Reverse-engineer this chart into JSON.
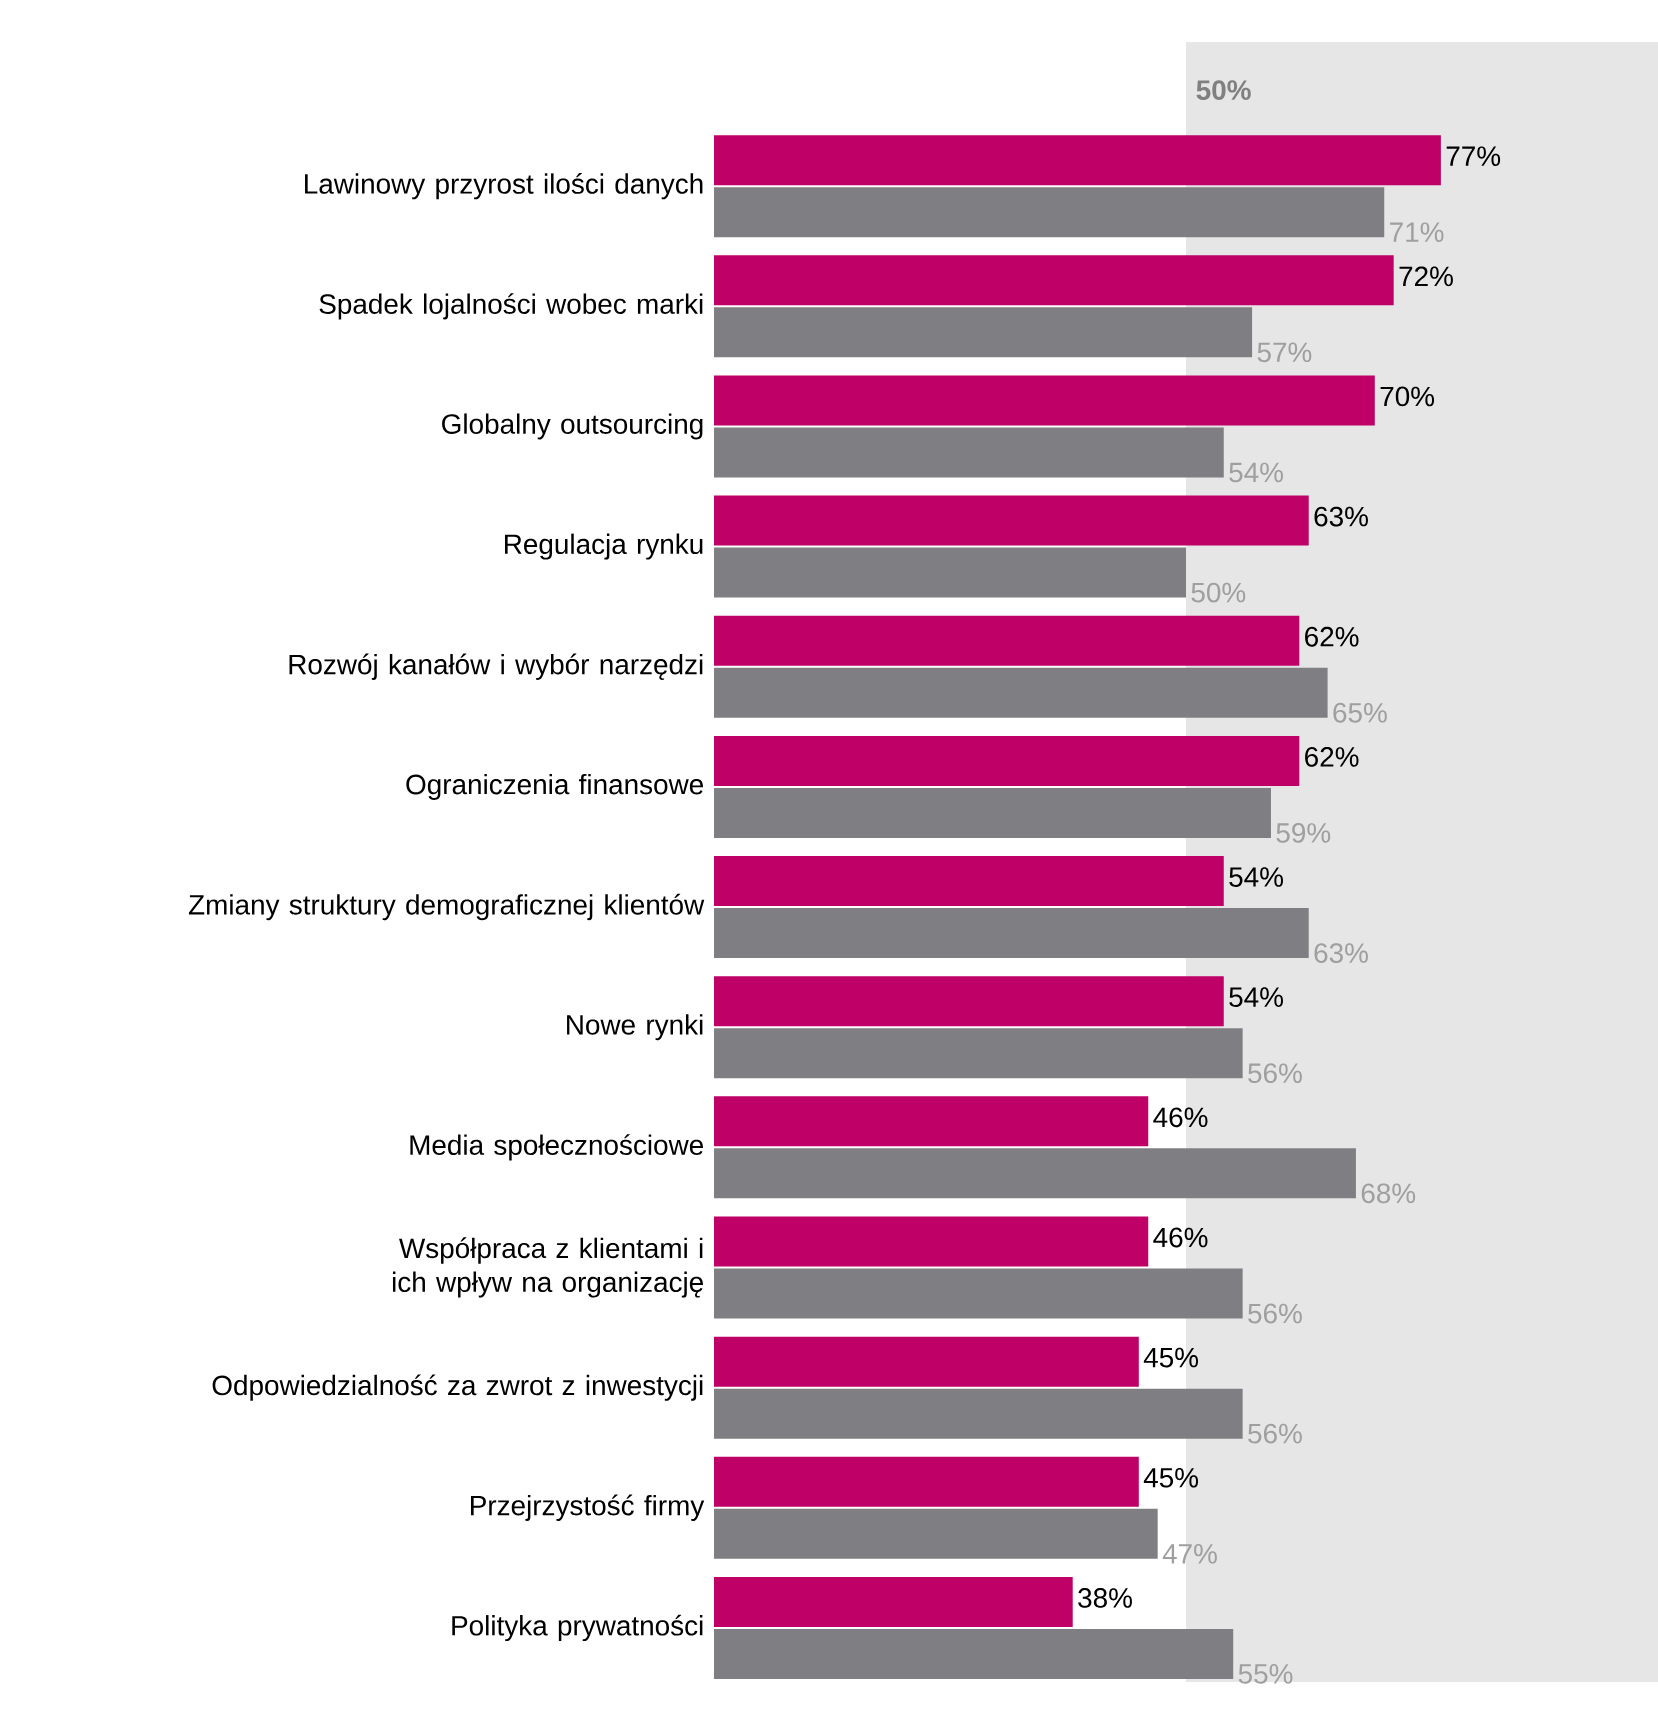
{
  "chart_data": {
    "type": "bar",
    "orientation": "horizontal",
    "categories": [
      "Lawinowy przyrost ilości danych",
      "Spadek lojalności wobec marki",
      "Globalny outsourcing",
      "Regulacja rynku",
      "Rozwój kanałów i wybór narzędzi",
      "Ograniczenia finansowe",
      "Zmiany struktury demograficznej klientów",
      "Nowe rynki",
      "Media społecznościowe",
      "Współpraca z klientami i ich wpływ na organizację",
      "Odpowiedzialność za zwrot z inwestycji",
      "Przejrzystość firmy",
      "Polityka prywatności"
    ],
    "series": [
      {
        "color": "#be0067",
        "values": [
          77,
          72,
          70,
          63,
          62,
          62,
          54,
          54,
          46,
          46,
          45,
          45,
          38
        ],
        "value_labels": [
          "77%",
          "72%",
          "70%",
          "63%",
          "62%",
          "62%",
          "54%",
          "54%",
          "46%",
          "46%",
          "45%",
          "45%",
          "38%"
        ]
      },
      {
        "color": "#7f7f83",
        "values": [
          71,
          57,
          54,
          50,
          65,
          59,
          63,
          56,
          68,
          56,
          56,
          47,
          55
        ],
        "value_labels": [
          "71%",
          "57%",
          "54%",
          "50%",
          "65%",
          "59%",
          "63%",
          "56%",
          "68%",
          "56%",
          "56%",
          "47%",
          "55%"
        ]
      }
    ],
    "xlim": [
      0,
      100
    ],
    "tick_labels": "y",
    "bands": [
      {
        "axis": "x",
        "from": 50,
        "to": 100,
        "label": "50%",
        "color": "#e6e6e6"
      }
    ]
  }
}
